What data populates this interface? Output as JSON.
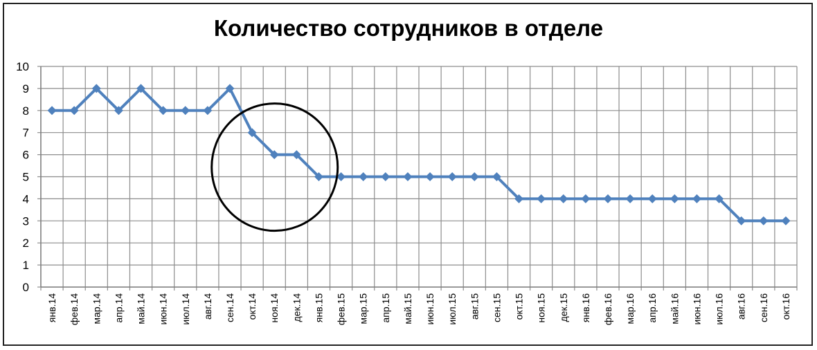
{
  "chart_data": {
    "type": "line",
    "title": "Количество сотрудников в отделе",
    "categories": [
      "янв.14",
      "фев.14",
      "мар.14",
      "апр.14",
      "май.14",
      "июн.14",
      "июл.14",
      "авг.14",
      "сен.14",
      "окт.14",
      "ноя.14",
      "дек.14",
      "янв.15",
      "фев.15",
      "мар.15",
      "апр.15",
      "май.15",
      "июн.15",
      "июл.15",
      "авг.15",
      "сен.15",
      "окт.15",
      "ноя.15",
      "дек.15",
      "янв.16",
      "фев.16",
      "мар.16",
      "апр.16",
      "май.16",
      "июн.16",
      "июл.16",
      "авг.16",
      "сен.16",
      "окт.16"
    ],
    "values": [
      8,
      8,
      9,
      8,
      9,
      8,
      8,
      8,
      9,
      7,
      6,
      6,
      5,
      5,
      5,
      5,
      5,
      5,
      5,
      5,
      5,
      4,
      4,
      4,
      4,
      4,
      4,
      4,
      4,
      4,
      4,
      3,
      3,
      3
    ],
    "ylim": [
      0,
      10
    ],
    "yticks": [
      "0",
      "1",
      "2",
      "3",
      "4",
      "5",
      "6",
      "7",
      "8",
      "9",
      "10"
    ],
    "grid": true,
    "series_color": "#4F81BD",
    "annotation": "circle around окт.14–янв.15 decline"
  }
}
